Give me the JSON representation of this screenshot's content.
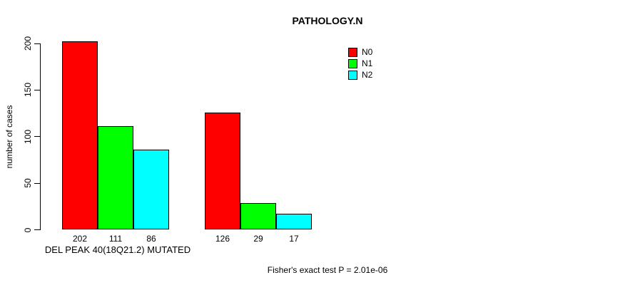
{
  "page": {
    "caption": "Fisher's exact test P = 2.01e-06"
  },
  "chart_data": {
    "type": "bar",
    "title": "PATHOLOGY.N",
    "xlabel": "DEL PEAK 40(18Q21.2) MUTATED",
    "ylabel": "number of cases",
    "ylim": [
      0,
      200
    ],
    "yticks": [
      0,
      50,
      100,
      150,
      200
    ],
    "grid": false,
    "bar_value_labels_shown": true,
    "categories": [
      "",
      ""
    ],
    "series": [
      {
        "name": "N0",
        "color": "#FF0000",
        "values": [
          202,
          126
        ]
      },
      {
        "name": "N1",
        "color": "#00FF00",
        "values": [
          111,
          29
        ]
      },
      {
        "name": "N2",
        "color": "#00FFFF",
        "values": [
          86,
          17
        ]
      }
    ],
    "legend": {
      "position": "inside-top-right",
      "entries": [
        "N0",
        "N1",
        "N2"
      ]
    },
    "colors": {
      "background": "#FFFFFF",
      "axis": "#000000",
      "text": "#000000"
    },
    "annotation": "Fisher's exact test P = 2.01e-06"
  }
}
